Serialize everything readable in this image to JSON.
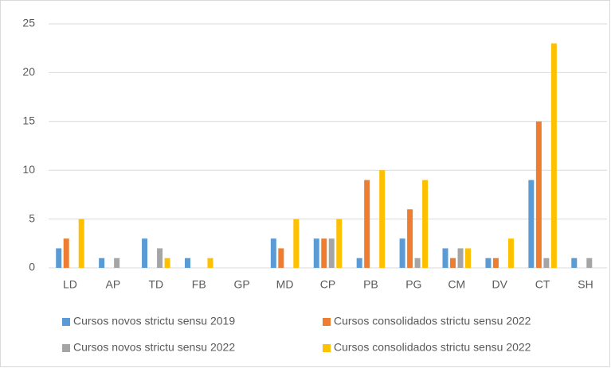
{
  "chart_data": {
    "type": "bar",
    "categories": [
      "LD",
      "AP",
      "TD",
      "FB",
      "GP",
      "MD",
      "CP",
      "PB",
      "PG",
      "CM",
      "DV",
      "CT",
      "SH"
    ],
    "series": [
      {
        "name": "Cursos novos strictu sensu 2019",
        "color": "#5b9bd5",
        "values": [
          2,
          1,
          3,
          1,
          0,
          3,
          3,
          1,
          3,
          2,
          1,
          9,
          1
        ]
      },
      {
        "name": "Cursos consolidados strictu sensu 2022",
        "color": "#ed7d31",
        "values": [
          3,
          0,
          0,
          0,
          0,
          2,
          3,
          9,
          6,
          1,
          1,
          15,
          0
        ]
      },
      {
        "name": "Cursos novos strictu sensu 2022",
        "color": "#a5a5a5",
        "values": [
          0,
          1,
          2,
          0,
          0,
          0,
          3,
          0,
          1,
          2,
          0,
          1,
          1
        ]
      },
      {
        "name": "Cursos consolidados strictu sensu 2022",
        "color": "#ffc000",
        "values": [
          5,
          0,
          1,
          1,
          0,
          5,
          5,
          10,
          9,
          2,
          3,
          23,
          0
        ]
      }
    ],
    "ylim": [
      0,
      25
    ],
    "yticks": [
      0,
      5,
      10,
      15,
      20,
      25
    ],
    "grid": true
  }
}
